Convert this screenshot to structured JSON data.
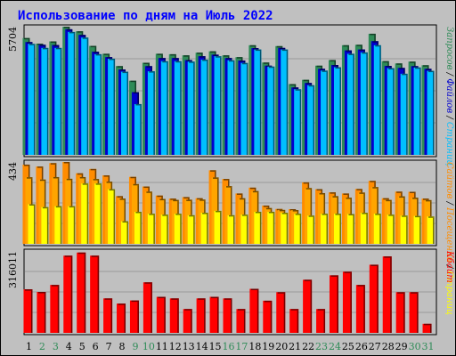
{
  "chart_data": {
    "type": "bar",
    "title": "Использование по дням на Июль 2022",
    "colors": {
      "title": "#0000ff",
      "background": "#c0c0c0",
      "hits": "#2e8b57",
      "files": "#0000cd",
      "pages": "#00bfff",
      "visits": "#ff8c00",
      "sites": "#ffff00",
      "kbytes": "#ff0000",
      "weekend_day": "#2e8b57"
    },
    "categories": [
      "1",
      "2",
      "3",
      "4",
      "5",
      "6",
      "7",
      "8",
      "9",
      "10",
      "11",
      "12",
      "13",
      "14",
      "15",
      "16",
      "17",
      "18",
      "19",
      "20",
      "21",
      "22",
      "23",
      "24",
      "25",
      "26",
      "27",
      "28",
      "29",
      "30",
      "31"
    ],
    "weekend_days": [
      "2",
      "3",
      "9",
      "10",
      "16",
      "17",
      "23",
      "24",
      "30",
      "31"
    ],
    "panels": [
      {
        "id": "requests",
        "max_label": "5704",
        "ylim": [
          0,
          5704
        ],
        "legend": [
          {
            "label": "Запросов",
            "color": "#2e8b57"
          },
          {
            "label": "Файлов",
            "color": "#0000cd"
          },
          {
            "label": "Страниц",
            "color": "#00bfff"
          }
        ],
        "series": [
          {
            "name": "Запросов",
            "values": [
              5200,
              4950,
              5050,
              5704,
              5500,
              4850,
              4500,
              3950,
              3300,
              4100,
              4500,
              4480,
              4430,
              4550,
              4610,
              4430,
              4350,
              4880,
              4110,
              4840,
              3150,
              3340,
              3970,
              4220,
              4880,
              4900,
              5390,
              4170,
              4070,
              4150,
              3990
            ]
          },
          {
            "name": "Файлов",
            "values": [
              5020,
              4900,
              4890,
              5590,
              5340,
              4590,
              4350,
              3800,
              2790,
              3950,
              4310,
              4310,
              4220,
              4390,
              4460,
              4310,
              4200,
              4750,
              3970,
              4760,
              3000,
              3200,
              3830,
              4000,
              4650,
              4690,
              5060,
              3960,
              3870,
              3950,
              3830
            ]
          },
          {
            "name": "Страниц",
            "values": [
              4940,
              4760,
              4760,
              5470,
              5220,
              4480,
              4280,
              3700,
              2260,
              3720,
              4170,
              4170,
              4150,
              4240,
              4390,
              4210,
              4090,
              4690,
              3930,
              4690,
              2920,
              3100,
              3750,
              3900,
              4500,
              4560,
              4880,
              3860,
              3610,
              3890,
              3740
            ]
          }
        ]
      },
      {
        "id": "visits",
        "max_label": "434",
        "ylim": [
          0,
          434
        ],
        "legend": [
          {
            "label": "Сайтов",
            "color": "#ff8c00"
          },
          {
            "label": "Посещений",
            "color": "#ff8c00"
          },
          {
            "label": "Страниц",
            "color": "#ffff00"
          }
        ],
        "series": [
          {
            "name": "Сайтов",
            "values": [
              420,
              410,
              428,
              434,
              374,
              397,
              363,
              253,
              355,
              304,
              256,
              240,
              248,
              242,
              390,
              344,
              267,
              298,
              203,
              185,
              184,
              326,
              290,
              273,
              267,
              291,
              334,
              242,
              277,
              276,
              240
            ]
          },
          {
            "name": "Посещений",
            "values": [
              353,
              341,
              354,
              345,
              354,
              344,
              330,
              240,
              317,
              277,
              238,
              233,
              234,
              235,
              352,
              306,
              242,
              280,
              190,
              180,
              179,
              296,
              269,
              253,
              245,
              272,
              301,
              233,
              252,
              245,
              232
            ]
          },
          {
            "name": "Страниц",
            "values": [
              210,
              195,
              200,
              200,
              320,
              320,
              290,
              120,
              170,
              160,
              155,
              160,
              152,
              165,
              175,
              152,
              155,
              170,
              170,
              165,
              160,
              150,
              160,
              160,
              158,
              165,
              160,
              155,
              150,
              148,
              145
            ]
          }
        ]
      },
      {
        "id": "kbytes",
        "max_label": "316011",
        "ylim": [
          0,
          316011
        ],
        "legend": [
          {
            "label": "Кбайт",
            "color": "#ff0000"
          }
        ],
        "series": [
          {
            "name": "Кбайт",
            "values": [
              168000,
              158000,
              185000,
              298000,
              310000,
              298000,
              133000,
              113000,
              125000,
              195000,
              139000,
              133000,
              92000,
              133000,
              139000,
              133000,
              92000,
              170000,
              124000,
              157000,
              92000,
              205000,
              92000,
              222000,
              236000,
              185000,
              263000,
              295000,
              157000,
              157000,
              35000
            ]
          }
        ]
      }
    ]
  }
}
